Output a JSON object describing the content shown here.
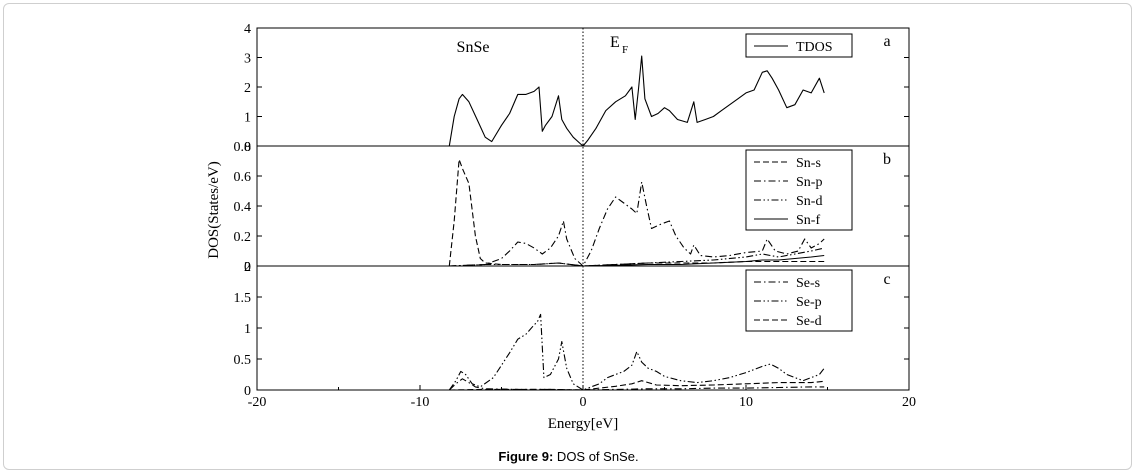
{
  "chart_data": [
    {
      "panel": "a",
      "type": "line",
      "ylim": [
        0,
        4
      ],
      "yticks": [
        "0",
        "1",
        "2",
        "3",
        "4"
      ],
      "annotations": [
        "SnSe",
        "E",
        "F"
      ],
      "legend_position": "top-right",
      "series": [
        {
          "name": "TDOS",
          "style": "solid",
          "x": [
            -8.2,
            -7.9,
            -7.6,
            -7.4,
            -7.0,
            -6.5,
            -6.0,
            -5.6,
            -5.0,
            -4.5,
            -4.0,
            -3.5,
            -3.0,
            -2.7,
            -2.5,
            -2.3,
            -1.9,
            -1.5,
            -1.3,
            -1.0,
            -0.6,
            -0.2,
            0.0,
            0.3,
            0.8,
            1.4,
            2.0,
            2.6,
            3.0,
            3.2,
            3.4,
            3.6,
            3.8,
            4.2,
            4.6,
            5.0,
            5.3,
            5.8,
            6.4,
            6.8,
            7.0,
            7.5,
            8.0,
            8.5,
            9.0,
            9.5,
            10.0,
            10.5,
            11.0,
            11.3,
            11.6,
            12.0,
            12.5,
            13.0,
            13.5,
            14.0,
            14.5,
            14.8
          ],
          "y": [
            0.0,
            1.0,
            1.6,
            1.75,
            1.5,
            0.9,
            0.3,
            0.15,
            0.7,
            1.1,
            1.75,
            1.75,
            1.85,
            2.0,
            0.5,
            0.7,
            1.0,
            1.7,
            0.9,
            0.6,
            0.3,
            0.1,
            0.0,
            0.2,
            0.6,
            1.2,
            1.5,
            1.7,
            2.0,
            0.9,
            1.9,
            3.05,
            1.6,
            1.0,
            1.1,
            1.3,
            1.2,
            0.9,
            0.8,
            1.5,
            0.8,
            0.9,
            1.0,
            1.2,
            1.4,
            1.6,
            1.8,
            1.9,
            2.5,
            2.55,
            2.3,
            1.9,
            1.3,
            1.4,
            1.9,
            1.8,
            2.3,
            1.8
          ]
        }
      ]
    },
    {
      "panel": "b",
      "type": "line",
      "ylim": [
        0,
        0.8
      ],
      "yticks": [
        "0",
        "0.2",
        "0.4",
        "0.6",
        "0.8"
      ],
      "legend_position": "top-right",
      "series": [
        {
          "name": "Sn-s",
          "style": "dashed",
          "x": [
            -8.2,
            -7.9,
            -7.6,
            -7.4,
            -7.0,
            -6.6,
            -6.3,
            -6.0,
            -5.0,
            -3.0,
            -1.5,
            0.0,
            2.0,
            4.0,
            6.0,
            8.0,
            10.0,
            12.0,
            14.0,
            14.8
          ],
          "y": [
            0.0,
            0.3,
            0.71,
            0.65,
            0.55,
            0.2,
            0.05,
            0.02,
            0.01,
            0.01,
            0.02,
            0.0,
            0.01,
            0.02,
            0.02,
            0.02,
            0.03,
            0.03,
            0.03,
            0.03
          ]
        },
        {
          "name": "Sn-p",
          "style": "dashdot",
          "x": [
            -8.2,
            -6.0,
            -5.0,
            -4.5,
            -4.0,
            -3.5,
            -3.0,
            -2.5,
            -2.0,
            -1.5,
            -1.2,
            -1.0,
            -0.5,
            0.0,
            0.5,
            1.0,
            1.5,
            2.0,
            2.5,
            3.0,
            3.3,
            3.6,
            3.9,
            4.2,
            4.8,
            5.3,
            5.7,
            6.2,
            6.6,
            6.8,
            7.2,
            8.0,
            9.0,
            10.0,
            11.0,
            11.3,
            11.8,
            12.5,
            13.2,
            13.6,
            14.0,
            14.5,
            14.8
          ],
          "y": [
            0.0,
            0.01,
            0.05,
            0.1,
            0.16,
            0.15,
            0.12,
            0.08,
            0.12,
            0.2,
            0.3,
            0.18,
            0.05,
            0.0,
            0.1,
            0.25,
            0.38,
            0.46,
            0.42,
            0.38,
            0.35,
            0.56,
            0.4,
            0.25,
            0.28,
            0.3,
            0.2,
            0.12,
            0.08,
            0.14,
            0.07,
            0.06,
            0.07,
            0.09,
            0.1,
            0.18,
            0.1,
            0.08,
            0.1,
            0.18,
            0.12,
            0.15,
            0.18
          ]
        },
        {
          "name": "Sn-d",
          "style": "dashdotdot",
          "x": [
            -8.2,
            -6.0,
            -3.0,
            -1.5,
            0.0,
            2.0,
            4.0,
            6.0,
            8.0,
            10.0,
            11.0,
            12.0,
            13.0,
            14.0,
            14.8
          ],
          "y": [
            0.0,
            0.01,
            0.01,
            0.02,
            0.0,
            0.01,
            0.02,
            0.03,
            0.04,
            0.06,
            0.08,
            0.06,
            0.08,
            0.1,
            0.12
          ]
        },
        {
          "name": "Sn-f",
          "style": "solid",
          "x": [
            -8.2,
            -6.0,
            -3.0,
            0.0,
            2.0,
            4.0,
            6.0,
            8.0,
            10.0,
            11.0,
            12.0,
            13.0,
            14.0,
            14.8
          ],
          "y": [
            0.0,
            0.0,
            0.0,
            0.0,
            0.005,
            0.01,
            0.01,
            0.02,
            0.03,
            0.04,
            0.04,
            0.05,
            0.06,
            0.07
          ]
        }
      ]
    },
    {
      "panel": "c",
      "type": "line",
      "ylim": [
        0,
        2
      ],
      "yticks": [
        "0",
        "0.5",
        "1",
        "1.5",
        "2"
      ],
      "xlim": [
        -20,
        20
      ],
      "xticks": [
        "-20",
        "-10",
        "0",
        "10",
        "20"
      ],
      "xlabel": "Energy[eV]",
      "ylabel": "DOS(States/eV)",
      "legend_position": "top-right",
      "series": [
        {
          "name": "Se-s",
          "style": "dashdot",
          "x": [
            -8.2,
            -7.8,
            -7.4,
            -7.0,
            -6.6,
            -6.0,
            -4.0,
            -2.0,
            0.0,
            2.0,
            4.0,
            6.0,
            8.0,
            10.0,
            12.0,
            14.0,
            14.8
          ],
          "y": [
            0.0,
            0.1,
            0.18,
            0.12,
            0.05,
            0.02,
            0.01,
            0.01,
            0.0,
            0.01,
            0.02,
            0.02,
            0.03,
            0.03,
            0.04,
            0.05,
            0.05
          ]
        },
        {
          "name": "Se-p",
          "style": "dashdotdot",
          "x": [
            -8.2,
            -7.8,
            -7.5,
            -7.2,
            -6.8,
            -6.3,
            -5.5,
            -5.0,
            -4.5,
            -4.0,
            -3.5,
            -3.0,
            -2.8,
            -2.6,
            -2.4,
            -2.0,
            -1.5,
            -1.3,
            -1.0,
            -0.6,
            0.0,
            0.5,
            1.0,
            1.5,
            2.0,
            2.5,
            3.0,
            3.3,
            3.6,
            4.0,
            4.5,
            5.0,
            6.0,
            7.0,
            8.0,
            9.0,
            10.0,
            11.0,
            11.5,
            12.0,
            12.5,
            13.0,
            13.5,
            14.0,
            14.5,
            14.8
          ],
          "y": [
            0.0,
            0.15,
            0.3,
            0.25,
            0.1,
            0.05,
            0.2,
            0.4,
            0.6,
            0.82,
            0.9,
            1.05,
            1.1,
            1.22,
            0.2,
            0.25,
            0.5,
            0.78,
            0.35,
            0.1,
            0.0,
            0.05,
            0.1,
            0.2,
            0.25,
            0.3,
            0.4,
            0.62,
            0.45,
            0.35,
            0.3,
            0.22,
            0.15,
            0.12,
            0.15,
            0.2,
            0.28,
            0.38,
            0.42,
            0.35,
            0.25,
            0.2,
            0.15,
            0.2,
            0.25,
            0.35
          ]
        },
        {
          "name": "Se-d",
          "style": "dashed",
          "x": [
            -8.2,
            -6.0,
            -4.0,
            -2.0,
            0.0,
            1.0,
            2.0,
            3.0,
            3.6,
            4.5,
            6.0,
            8.0,
            10.0,
            12.0,
            14.0,
            14.8
          ],
          "y": [
            0.0,
            0.01,
            0.01,
            0.01,
            0.0,
            0.03,
            0.06,
            0.1,
            0.15,
            0.08,
            0.07,
            0.08,
            0.1,
            0.12,
            0.12,
            0.14
          ]
        }
      ]
    }
  ],
  "caption": {
    "label": "Figure 9:",
    "text": " DOS of SnSe."
  }
}
